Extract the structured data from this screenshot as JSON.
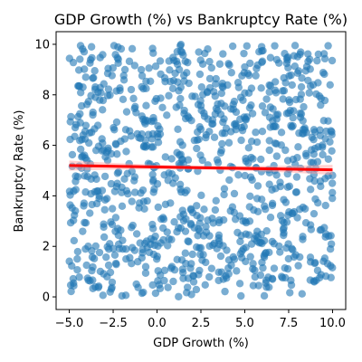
{
  "chart_data": {
    "type": "scatter",
    "title": "GDP Growth (%) vs Bankruptcy Rate (%)",
    "xlabel": "GDP Growth (%)",
    "ylabel": "Bankruptcy Rate (%)",
    "xlim": [
      -5.75,
      10.75
    ],
    "ylim": [
      -0.5,
      10.5
    ],
    "xticks": [
      -5.0,
      -2.5,
      0.0,
      2.5,
      5.0,
      7.5,
      10.0
    ],
    "xtick_labels": [
      "−5.0",
      "−2.5",
      "0.0",
      "2.5",
      "5.0",
      "7.5",
      "10.0"
    ],
    "yticks": [
      0,
      2,
      4,
      6,
      8,
      10
    ],
    "ytick_labels": [
      "0",
      "2",
      "4",
      "6",
      "8",
      "10"
    ],
    "grid": false,
    "n_points": 1000,
    "x_range": [
      -5,
      10
    ],
    "y_range": [
      0,
      10
    ],
    "point_color": "#1f77b4",
    "point_alpha": 0.6,
    "regression": {
      "color": "#ff0000",
      "x": [
        -5.0,
        10.0
      ],
      "y": [
        5.2,
        5.03
      ],
      "ci_band_color": "#ff9999"
    }
  }
}
